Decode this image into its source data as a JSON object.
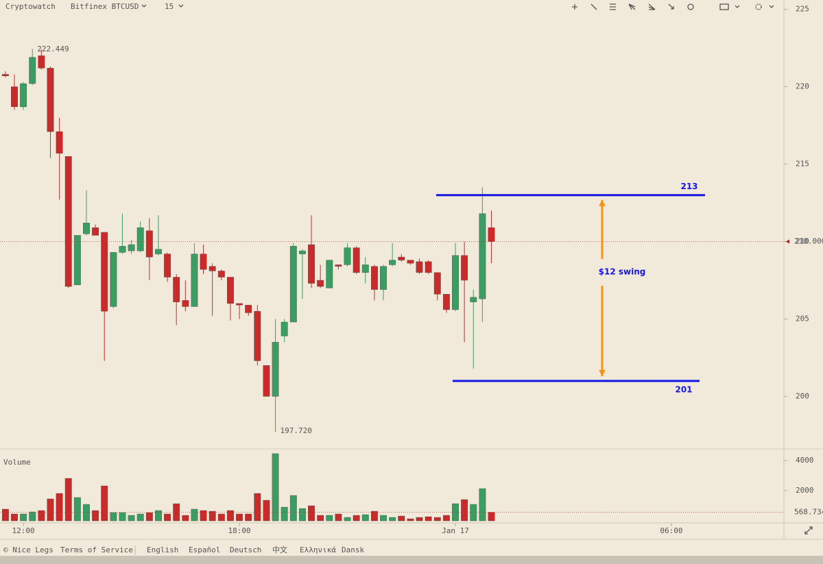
{
  "toolbar": {
    "brand": "Cryptowatch",
    "market": "Bitfinex BTCUSD",
    "interval": "15"
  },
  "footer": {
    "copyright": "© Nice Legs",
    "links": [
      "Terms of Service",
      "English",
      "Español",
      "Deutsch",
      "中文",
      "Ελληνικά",
      "Dansk"
    ]
  },
  "chart_data": [
    {
      "type": "candlestick",
      "x": [
        -2,
        -1,
        0,
        1,
        2,
        3,
        4,
        5,
        6,
        7,
        8,
        9,
        10,
        11,
        12,
        13,
        14,
        15,
        16,
        17,
        18,
        19,
        20,
        21,
        22,
        23,
        24,
        25,
        26,
        27,
        28,
        29,
        30,
        31,
        32,
        33,
        34,
        35,
        36,
        37,
        38,
        39,
        40,
        41,
        42,
        43,
        44,
        45,
        46,
        47,
        48,
        49,
        50,
        51,
        52
      ],
      "open": [
        220.8,
        220.0,
        218.7,
        220.2,
        222.0,
        221.2,
        217.1,
        215.5,
        207.2,
        210.5,
        210.9,
        210.6,
        205.8,
        209.3,
        209.4,
        209.4,
        210.7,
        209.2,
        209.2,
        207.7,
        206.2,
        205.8,
        209.2,
        208.4,
        208.1,
        207.7,
        206.0,
        205.9,
        205.5,
        202.0,
        200.0,
        203.9,
        204.8,
        209.2,
        209.8,
        207.5,
        207.0,
        208.5,
        208.5,
        209.6,
        208.0,
        208.4,
        206.9,
        208.5,
        209.0,
        208.8,
        208.7,
        208.7,
        208.0,
        206.6,
        205.6,
        209.1,
        206.1,
        206.3,
        210.9
      ],
      "high": [
        221.0,
        220.8,
        220.3,
        222.449,
        222.4,
        221.3,
        218.0,
        215.5,
        210.4,
        213.3,
        211.1,
        210.6,
        209.3,
        211.8,
        210.1,
        211.3,
        211.5,
        211.7,
        209.3,
        207.9,
        207.5,
        209.9,
        209.8,
        208.6,
        208.2,
        207.7,
        206.0,
        205.9,
        205.9,
        202.0,
        205.0,
        205.0,
        209.9,
        209.5,
        211.7,
        208.5,
        208.8,
        208.5,
        209.9,
        209.7,
        209.0,
        208.5,
        208.5,
        209.9,
        209.2,
        208.8,
        208.9,
        208.8,
        208.0,
        206.6,
        209.9,
        210.0,
        206.9,
        213.5,
        212.0
      ],
      "low": [
        220.6,
        218.5,
        218.5,
        220.1,
        221.1,
        215.4,
        212.7,
        207.0,
        207.2,
        210.4,
        210.4,
        202.3,
        205.7,
        209.2,
        209.2,
        209.3,
        207.5,
        209.1,
        207.4,
        204.6,
        205.5,
        205.8,
        207.9,
        205.2,
        207.5,
        204.9,
        205.0,
        205.2,
        202.0,
        200.0,
        197.72,
        203.5,
        204.8,
        206.3,
        207.0,
        207.0,
        207.0,
        208.2,
        208.4,
        207.9,
        207.3,
        206.2,
        206.2,
        208.4,
        208.7,
        208.5,
        207.9,
        207.9,
        206.2,
        205.4,
        205.5,
        203.5,
        201.8,
        204.8,
        208.6
      ],
      "close": [
        220.7,
        218.7,
        220.2,
        221.9,
        221.2,
        217.1,
        215.7,
        207.1,
        210.4,
        211.2,
        210.4,
        205.5,
        209.3,
        209.7,
        209.8,
        210.9,
        209.0,
        209.5,
        207.7,
        206.1,
        205.8,
        209.2,
        208.2,
        208.1,
        207.7,
        206.0,
        205.9,
        205.4,
        202.3,
        200.0,
        203.5,
        204.8,
        209.7,
        209.4,
        207.3,
        207.1,
        208.8,
        208.4,
        209.6,
        208.0,
        208.5,
        206.9,
        208.4,
        208.8,
        208.8,
        208.6,
        208.0,
        208.0,
        206.6,
        205.6,
        209.1,
        207.5,
        206.4,
        211.8,
        210.0
      ],
      "up_color": "#3a9e63",
      "down_color": "#c92a2a",
      "xlim": [
        -2.6,
        84.5
      ],
      "xticks": [
        {
          "value": 0,
          "label": "12:00"
        },
        {
          "value": 24,
          "label": "18:00"
        },
        {
          "value": 48,
          "label": "Jan 17"
        },
        {
          "value": 72,
          "label": "06:00"
        }
      ],
      "ylim": [
        196.7,
        225.6
      ],
      "yticks": [
        200,
        205,
        210,
        215,
        220,
        225
      ],
      "high_label": 222.449,
      "low_label": {
        "value": 197.72,
        "label": "197.720"
      },
      "last_price": {
        "value": 210,
        "label": "210.000"
      },
      "levels": [
        213,
        201
      ],
      "level_color": "#1414e6",
      "swing_label": "$12 swing",
      "arrow_color": "#f39414"
    },
    {
      "type": "bar",
      "title": "Volume",
      "values": [
        773,
        455,
        455,
        591,
        682,
        1455,
        1818,
        2818,
        1545,
        1091,
        682,
        2318,
        545,
        545,
        364,
        455,
        545,
        682,
        455,
        1136,
        364,
        773,
        682,
        636,
        455,
        682,
        455,
        455,
        1818,
        1364,
        4455,
        909,
        1682,
        818,
        1000,
        364,
        364,
        455,
        227,
        364,
        409,
        636,
        364,
        227,
        318,
        136,
        227,
        273,
        227,
        364,
        1136,
        1409,
        1091,
        2136,
        568.734
      ],
      "ylim": [
        0,
        4500
      ],
      "yticks": [
        2000,
        4000
      ],
      "last_value": 568.734
    }
  ]
}
